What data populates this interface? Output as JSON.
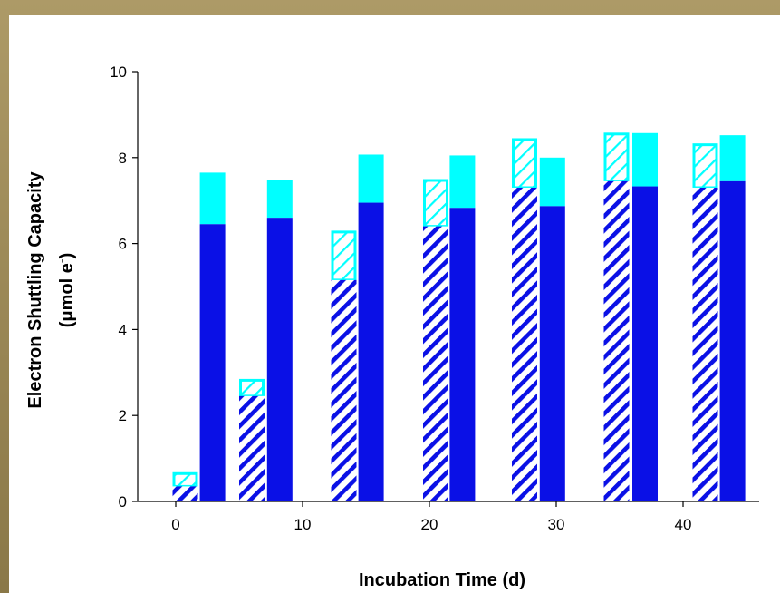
{
  "chart_data": {
    "type": "bar",
    "xlabel": "Incubation Time (d)",
    "ylabel": {
      "line1": "Electron Shuttling Capacity",
      "line2_prefix": "(",
      "line2_mu": "μ",
      "line2_mid": "mol e",
      "line2_sup": "-",
      "line2_suffix": ")"
    },
    "xlim": [
      -3,
      46
    ],
    "ylim": [
      0,
      10
    ],
    "xticks": [
      0,
      10,
      20,
      30,
      40
    ],
    "yticks": [
      0,
      2,
      4,
      6,
      8,
      10
    ],
    "grid": false,
    "legend": "none",
    "colors": {
      "blue": "#0a10e6",
      "cyan": "#00ffff",
      "hatch_bg": "#ffffff"
    },
    "series": [
      {
        "style": "hatched",
        "bar_width_days": 2,
        "bars": [
          {
            "x": 0.75,
            "bottom_value": 0.35,
            "total": 0.68
          },
          {
            "x": 6.0,
            "bottom_value": 2.45,
            "total": 2.85
          },
          {
            "x": 13.25,
            "bottom_value": 5.15,
            "total": 6.3
          },
          {
            "x": 20.5,
            "bottom_value": 6.4,
            "total": 7.5
          },
          {
            "x": 27.5,
            "bottom_value": 7.3,
            "total": 8.45
          },
          {
            "x": 34.75,
            "bottom_value": 7.45,
            "total": 8.58
          },
          {
            "x": 41.75,
            "bottom_value": 7.3,
            "total": 8.33
          }
        ]
      },
      {
        "style": "solid",
        "bar_width_days": 2,
        "bars": [
          {
            "x": 2.9,
            "bottom_value": 6.45,
            "total": 7.65
          },
          {
            "x": 8.2,
            "bottom_value": 6.6,
            "total": 7.47
          },
          {
            "x": 15.4,
            "bottom_value": 6.95,
            "total": 8.07
          },
          {
            "x": 22.6,
            "bottom_value": 6.83,
            "total": 8.05
          },
          {
            "x": 29.7,
            "bottom_value": 6.87,
            "total": 8.0
          },
          {
            "x": 37.0,
            "bottom_value": 7.33,
            "total": 8.57
          },
          {
            "x": 43.9,
            "bottom_value": 7.45,
            "total": 8.52
          }
        ]
      }
    ]
  }
}
